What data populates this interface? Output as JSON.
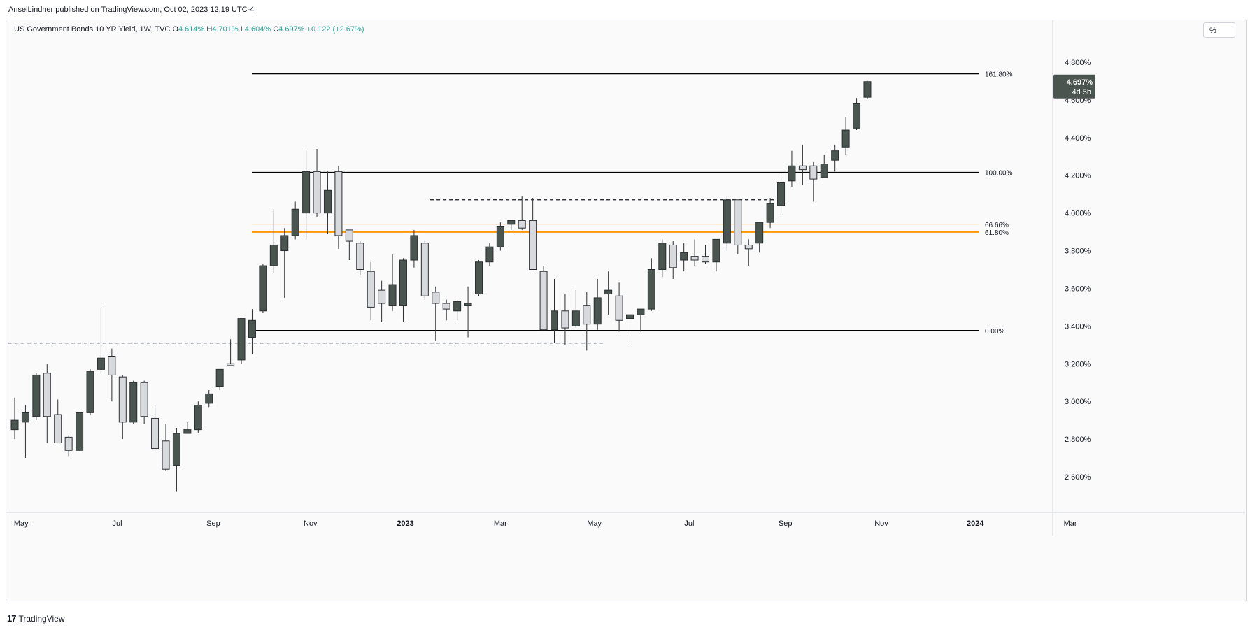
{
  "header": {
    "publisher": "AnselLindner published on TradingView.com, Oct 02, 2023 12:19 UTC-4",
    "symbol": "US Government Bonds 10 YR Yield, 1W, TVC",
    "o_label": "O",
    "o_value": "4.614%",
    "h_label": "H",
    "h_value": "4.701%",
    "l_label": "L",
    "l_value": "4.604%",
    "c_label": "C",
    "c_value": "4.697%",
    "change": "+0.122 (+2.67%)"
  },
  "scale_button": "%",
  "footer": {
    "logo": "17",
    "brand": "TradingView"
  },
  "colors": {
    "up": "#4a5550",
    "down": "#d7d9dc",
    "fib_orange": "#ff9800",
    "fib_light": "#ffd08a",
    "line": "#000000"
  },
  "chart_data": {
    "type": "candlestick",
    "title": "US Government Bonds 10 YR Yield, 1W, TVC",
    "ylim": [
      2.44,
      4.94
    ],
    "y_ticks": [
      "4.800%",
      "4.600%",
      "4.400%",
      "4.200%",
      "4.000%",
      "3.800%",
      "3.600%",
      "3.400%",
      "3.200%",
      "3.000%",
      "2.800%",
      "2.600%"
    ],
    "y_tick_values": [
      4.8,
      4.6,
      4.4,
      4.2,
      4.0,
      3.8,
      3.6,
      3.4,
      3.2,
      3.0,
      2.8,
      2.6
    ],
    "x_axis_start_week": 0,
    "x_ticks": [
      {
        "label": "May",
        "week": 0.6
      },
      {
        "label": "Jul",
        "week": 9.5
      },
      {
        "label": "Sep",
        "week": 18.4
      },
      {
        "label": "Nov",
        "week": 27.4
      },
      {
        "label": "2023",
        "week": 36.2
      },
      {
        "label": "Mar",
        "week": 45.0
      },
      {
        "label": "May",
        "week": 53.7
      },
      {
        "label": "Jul",
        "week": 62.5
      },
      {
        "label": "Sep",
        "week": 71.4
      },
      {
        "label": "Nov",
        "week": 80.3
      },
      {
        "label": "2024",
        "week": 89.0
      },
      {
        "label": "Mar",
        "week": 97.8
      }
    ],
    "last_price": {
      "value": 4.697,
      "label": "4.697%",
      "countdown": "4d 5h"
    },
    "candles": [
      {
        "o": 2.85,
        "h": 3.02,
        "l": 2.8,
        "c": 2.9
      },
      {
        "o": 2.89,
        "h": 2.98,
        "l": 2.7,
        "c": 2.94
      },
      {
        "o": 2.92,
        "h": 3.15,
        "l": 2.9,
        "c": 3.14
      },
      {
        "o": 3.15,
        "h": 3.2,
        "l": 2.78,
        "c": 2.92
      },
      {
        "o": 2.93,
        "h": 3.01,
        "l": 2.78,
        "c": 2.78
      },
      {
        "o": 2.81,
        "h": 2.82,
        "l": 2.71,
        "c": 2.74
      },
      {
        "o": 2.74,
        "h": 2.94,
        "l": 2.74,
        "c": 2.94
      },
      {
        "o": 2.94,
        "h": 3.17,
        "l": 2.93,
        "c": 3.16
      },
      {
        "o": 3.17,
        "h": 3.5,
        "l": 3.15,
        "c": 3.23
      },
      {
        "o": 3.24,
        "h": 3.28,
        "l": 3.0,
        "c": 3.14
      },
      {
        "o": 3.13,
        "h": 3.14,
        "l": 2.8,
        "c": 2.89
      },
      {
        "o": 2.89,
        "h": 3.11,
        "l": 2.88,
        "c": 3.1
      },
      {
        "o": 3.1,
        "h": 3.11,
        "l": 2.88,
        "c": 2.92
      },
      {
        "o": 2.91,
        "h": 2.98,
        "l": 2.75,
        "c": 2.75
      },
      {
        "o": 2.79,
        "h": 2.88,
        "l": 2.63,
        "c": 2.64
      },
      {
        "o": 2.66,
        "h": 2.86,
        "l": 2.52,
        "c": 2.83
      },
      {
        "o": 2.83,
        "h": 2.89,
        "l": 2.83,
        "c": 2.85
      },
      {
        "o": 2.85,
        "h": 3.0,
        "l": 2.83,
        "c": 2.98
      },
      {
        "o": 2.99,
        "h": 3.06,
        "l": 2.97,
        "c": 3.04
      },
      {
        "o": 3.08,
        "h": 3.16,
        "l": 3.06,
        "c": 3.17
      },
      {
        "o": 3.2,
        "h": 3.33,
        "l": 3.19,
        "c": 3.19
      },
      {
        "o": 3.22,
        "h": 3.42,
        "l": 3.2,
        "c": 3.44
      },
      {
        "o": 3.34,
        "h": 3.49,
        "l": 3.25,
        "c": 3.43
      },
      {
        "o": 3.48,
        "h": 3.73,
        "l": 3.47,
        "c": 3.72
      },
      {
        "o": 3.72,
        "h": 4.02,
        "l": 3.68,
        "c": 3.83
      },
      {
        "o": 3.8,
        "h": 3.92,
        "l": 3.55,
        "c": 3.88
      },
      {
        "o": 3.88,
        "h": 4.06,
        "l": 3.86,
        "c": 4.02
      },
      {
        "o": 4.0,
        "h": 4.33,
        "l": 3.86,
        "c": 4.22
      },
      {
        "o": 4.22,
        "h": 4.34,
        "l": 3.98,
        "c": 4.0
      },
      {
        "o": 4.0,
        "h": 4.22,
        "l": 3.89,
        "c": 4.12
      },
      {
        "o": 4.22,
        "h": 4.25,
        "l": 3.81,
        "c": 3.88
      },
      {
        "o": 3.91,
        "h": 3.91,
        "l": 3.75,
        "c": 3.85
      },
      {
        "o": 3.84,
        "h": 3.85,
        "l": 3.67,
        "c": 3.7
      },
      {
        "o": 3.69,
        "h": 3.74,
        "l": 3.43,
        "c": 3.5
      },
      {
        "o": 3.59,
        "h": 3.64,
        "l": 3.42,
        "c": 3.52
      },
      {
        "o": 3.51,
        "h": 3.78,
        "l": 3.48,
        "c": 3.62
      },
      {
        "o": 3.51,
        "h": 3.76,
        "l": 3.42,
        "c": 3.75
      },
      {
        "o": 3.75,
        "h": 3.91,
        "l": 3.71,
        "c": 3.88
      },
      {
        "o": 3.84,
        "h": 3.85,
        "l": 3.54,
        "c": 3.56
      },
      {
        "o": 3.58,
        "h": 3.61,
        "l": 3.32,
        "c": 3.52
      },
      {
        "o": 3.52,
        "h": 3.54,
        "l": 3.43,
        "c": 3.49
      },
      {
        "o": 3.48,
        "h": 3.54,
        "l": 3.43,
        "c": 3.53
      },
      {
        "o": 3.51,
        "h": 3.61,
        "l": 3.34,
        "c": 3.52
      },
      {
        "o": 3.57,
        "h": 3.75,
        "l": 3.56,
        "c": 3.74
      },
      {
        "o": 3.74,
        "h": 3.84,
        "l": 3.72,
        "c": 3.82
      },
      {
        "o": 3.82,
        "h": 3.95,
        "l": 3.8,
        "c": 3.93
      },
      {
        "o": 3.94,
        "h": 3.96,
        "l": 3.91,
        "c": 3.96
      },
      {
        "o": 3.96,
        "h": 4.09,
        "l": 3.91,
        "c": 3.92
      },
      {
        "o": 3.96,
        "h": 4.08,
        "l": 3.7,
        "c": 3.7
      },
      {
        "o": 3.69,
        "h": 3.72,
        "l": 3.39,
        "c": 3.38
      },
      {
        "o": 3.38,
        "h": 3.65,
        "l": 3.31,
        "c": 3.48
      },
      {
        "o": 3.48,
        "h": 3.57,
        "l": 3.3,
        "c": 3.39
      },
      {
        "o": 3.4,
        "h": 3.59,
        "l": 3.39,
        "c": 3.48
      },
      {
        "o": 3.51,
        "h": 3.58,
        "l": 3.27,
        "c": 3.41
      },
      {
        "o": 3.41,
        "h": 3.65,
        "l": 3.38,
        "c": 3.55
      },
      {
        "o": 3.57,
        "h": 3.69,
        "l": 3.46,
        "c": 3.59
      },
      {
        "o": 3.56,
        "h": 3.63,
        "l": 3.37,
        "c": 3.43
      },
      {
        "o": 3.44,
        "h": 3.46,
        "l": 3.31,
        "c": 3.46
      },
      {
        "o": 3.46,
        "h": 3.47,
        "l": 3.37,
        "c": 3.49
      },
      {
        "o": 3.49,
        "h": 3.76,
        "l": 3.48,
        "c": 3.7
      },
      {
        "o": 3.7,
        "h": 3.86,
        "l": 3.66,
        "c": 3.84
      },
      {
        "o": 3.83,
        "h": 3.85,
        "l": 3.65,
        "c": 3.71
      },
      {
        "o": 3.75,
        "h": 3.84,
        "l": 3.69,
        "c": 3.79
      },
      {
        "o": 3.77,
        "h": 3.86,
        "l": 3.72,
        "c": 3.75
      },
      {
        "o": 3.77,
        "h": 3.83,
        "l": 3.73,
        "c": 3.74
      },
      {
        "o": 3.74,
        "h": 3.85,
        "l": 3.69,
        "c": 3.86
      },
      {
        "o": 3.84,
        "h": 4.09,
        "l": 3.8,
        "c": 4.07
      },
      {
        "o": 4.07,
        "h": 4.07,
        "l": 3.78,
        "c": 3.83
      },
      {
        "o": 3.83,
        "h": 3.86,
        "l": 3.72,
        "c": 3.81
      },
      {
        "o": 3.84,
        "h": 3.95,
        "l": 3.79,
        "c": 3.95
      },
      {
        "o": 3.95,
        "h": 4.08,
        "l": 3.92,
        "c": 4.05
      },
      {
        "o": 4.04,
        "h": 4.2,
        "l": 4.0,
        "c": 4.16
      },
      {
        "o": 4.17,
        "h": 4.33,
        "l": 4.14,
        "c": 4.25
      },
      {
        "o": 4.25,
        "h": 4.36,
        "l": 4.15,
        "c": 4.23
      },
      {
        "o": 4.25,
        "h": 4.27,
        "l": 4.06,
        "c": 4.18
      },
      {
        "o": 4.19,
        "h": 4.31,
        "l": 4.19,
        "c": 4.26
      },
      {
        "o": 4.28,
        "h": 4.36,
        "l": 4.22,
        "c": 4.33
      },
      {
        "o": 4.35,
        "h": 4.51,
        "l": 4.31,
        "c": 4.44
      },
      {
        "o": 4.45,
        "h": 4.61,
        "l": 4.44,
        "c": 4.58
      },
      {
        "o": 4.614,
        "h": 4.701,
        "l": 4.604,
        "c": 4.697
      }
    ],
    "fib_levels": [
      {
        "label": "161.80%",
        "value": 4.739
      },
      {
        "label": "100.00%",
        "value": 4.215
      },
      {
        "label": "66.66%",
        "value": 3.94
      },
      {
        "label": "61.80%",
        "value": 3.899
      },
      {
        "label": "0.00%",
        "value": 3.376
      }
    ],
    "dashed_levels": [
      {
        "value": 3.31,
        "from_week": -0.6,
        "to_week": 54.5
      },
      {
        "value": 4.07,
        "from_week": 38.5,
        "to_week": 70.5
      }
    ]
  }
}
